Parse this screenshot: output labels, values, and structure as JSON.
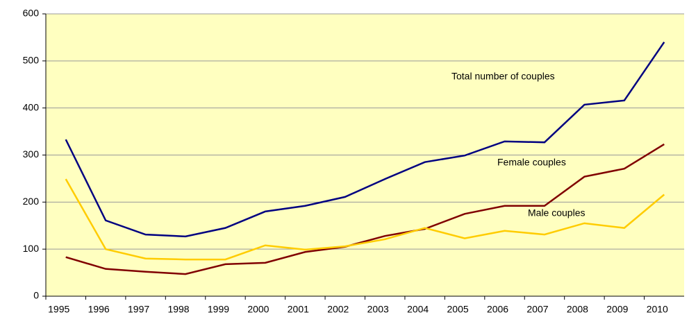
{
  "chart_data": {
    "type": "line",
    "categories": [
      "1995",
      "1996",
      "1997",
      "1998",
      "1999",
      "2000",
      "2001",
      "2002",
      "2003",
      "2004",
      "2005",
      "2006",
      "2007",
      "2008",
      "2009",
      "2010"
    ],
    "series": [
      {
        "name": "Total number of couples",
        "color": "#000080",
        "values": [
          333,
          161,
          131,
          127,
          145,
          180,
          192,
          211,
          249,
          285,
          299,
          329,
          327,
          407,
          416,
          540
        ]
      },
      {
        "name": "Female couples",
        "color": "#800000",
        "values": [
          83,
          58,
          52,
          47,
          68,
          71,
          94,
          105,
          128,
          143,
          175,
          192,
          192,
          254,
          271,
          323
        ]
      },
      {
        "name": "Male couples",
        "color": "#FFCC00",
        "values": [
          249,
          100,
          80,
          78,
          78,
          108,
          99,
          106,
          121,
          145,
          123,
          139,
          131,
          155,
          145,
          216
        ]
      }
    ],
    "ylim": [
      0,
      600
    ],
    "yticks": [
      0,
      100,
      200,
      300,
      400,
      500,
      600
    ],
    "grid": true
  }
}
